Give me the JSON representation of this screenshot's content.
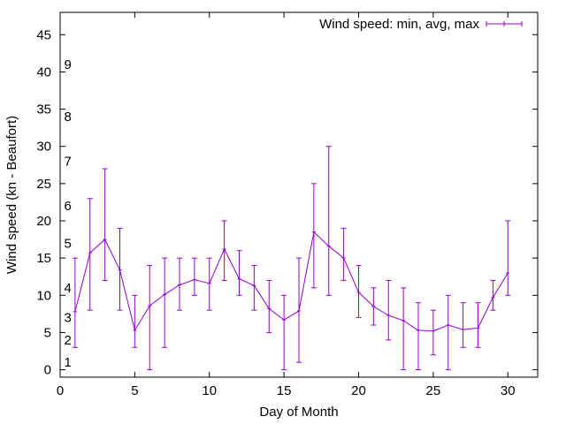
{
  "chart_data": {
    "type": "line",
    "xlabel": "Day of Month",
    "ylabel": "Wind speed (kn - Beaufort)",
    "xlim": [
      0,
      32
    ],
    "ylim": [
      -1,
      48
    ],
    "xticks": [
      0,
      5,
      10,
      15,
      20,
      25,
      30
    ],
    "yticks": [
      0,
      5,
      10,
      15,
      20,
      25,
      30,
      35,
      40,
      45
    ],
    "grid": false,
    "legend_position": "top-right",
    "series": [
      {
        "name": "Wind speed: min, avg, max",
        "color": "#9400d3",
        "style": "yerrorlines",
        "points": [
          {
            "x": 1,
            "y": 7.8,
            "ymin": 3,
            "ymax": 15
          },
          {
            "x": 2,
            "y": 15.7,
            "ymin": 8,
            "ymax": 23
          },
          {
            "x": 3,
            "y": 17.5,
            "ymin": 12,
            "ymax": 27
          },
          {
            "x": 4,
            "y": 13.4,
            "ymin": 8,
            "ymax": 19
          },
          {
            "x": 5,
            "y": 5.3,
            "ymin": 3,
            "ymax": 10
          },
          {
            "x": 6,
            "y": 8.6,
            "ymin": 0,
            "ymax": 14
          },
          {
            "x": 7,
            "y": 10.1,
            "ymin": 3,
            "ymax": 15
          },
          {
            "x": 8,
            "y": 11.4,
            "ymin": 8,
            "ymax": 15
          },
          {
            "x": 9,
            "y": 12.1,
            "ymin": 10,
            "ymax": 15
          },
          {
            "x": 10,
            "y": 11.6,
            "ymin": 8,
            "ymax": 15
          },
          {
            "x": 11,
            "y": 16.2,
            "ymin": 12,
            "ymax": 20
          },
          {
            "x": 12,
            "y": 12.2,
            "ymin": 10,
            "ymax": 16
          },
          {
            "x": 13,
            "y": 11.3,
            "ymin": 8,
            "ymax": 14
          },
          {
            "x": 14,
            "y": 8.2,
            "ymin": 5,
            "ymax": 12
          },
          {
            "x": 15,
            "y": 6.7,
            "ymin": 0,
            "ymax": 10
          },
          {
            "x": 16,
            "y": 7.9,
            "ymin": 1,
            "ymax": 15
          },
          {
            "x": 17,
            "y": 18.5,
            "ymin": 11,
            "ymax": 25
          },
          {
            "x": 18,
            "y": 16.6,
            "ymin": 10,
            "ymax": 30
          },
          {
            "x": 19,
            "y": 15.0,
            "ymin": 12,
            "ymax": 19
          },
          {
            "x": 20,
            "y": 10.4,
            "ymin": 7,
            "ymax": 14
          },
          {
            "x": 21,
            "y": 8.5,
            "ymin": 6,
            "ymax": 11
          },
          {
            "x": 22,
            "y": 7.3,
            "ymin": 4,
            "ymax": 12
          },
          {
            "x": 23,
            "y": 6.6,
            "ymin": 0,
            "ymax": 11
          },
          {
            "x": 24,
            "y": 5.3,
            "ymin": 0,
            "ymax": 9
          },
          {
            "x": 25,
            "y": 5.2,
            "ymin": 2,
            "ymax": 8
          },
          {
            "x": 26,
            "y": 6.0,
            "ymin": 0,
            "ymax": 10
          },
          {
            "x": 27,
            "y": 5.4,
            "ymin": 3,
            "ymax": 9
          },
          {
            "x": 28,
            "y": 5.6,
            "ymin": 3,
            "ymax": 9
          },
          {
            "x": 29,
            "y": 9.7,
            "ymin": 8,
            "ymax": 12
          },
          {
            "x": 30,
            "y": 13.0,
            "ymin": 10,
            "ymax": 20
          }
        ]
      }
    ],
    "annotations": [
      {
        "text": "1",
        "x": 0.5,
        "y": 1
      },
      {
        "text": "2",
        "x": 0.5,
        "y": 4
      },
      {
        "text": "3",
        "x": 0.5,
        "y": 7
      },
      {
        "text": "4",
        "x": 0.5,
        "y": 11
      },
      {
        "text": "5",
        "x": 0.5,
        "y": 17
      },
      {
        "text": "6",
        "x": 0.5,
        "y": 22
      },
      {
        "text": "7",
        "x": 0.5,
        "y": 28
      },
      {
        "text": "8",
        "x": 0.5,
        "y": 34
      },
      {
        "text": "9",
        "x": 0.5,
        "y": 41
      }
    ]
  }
}
